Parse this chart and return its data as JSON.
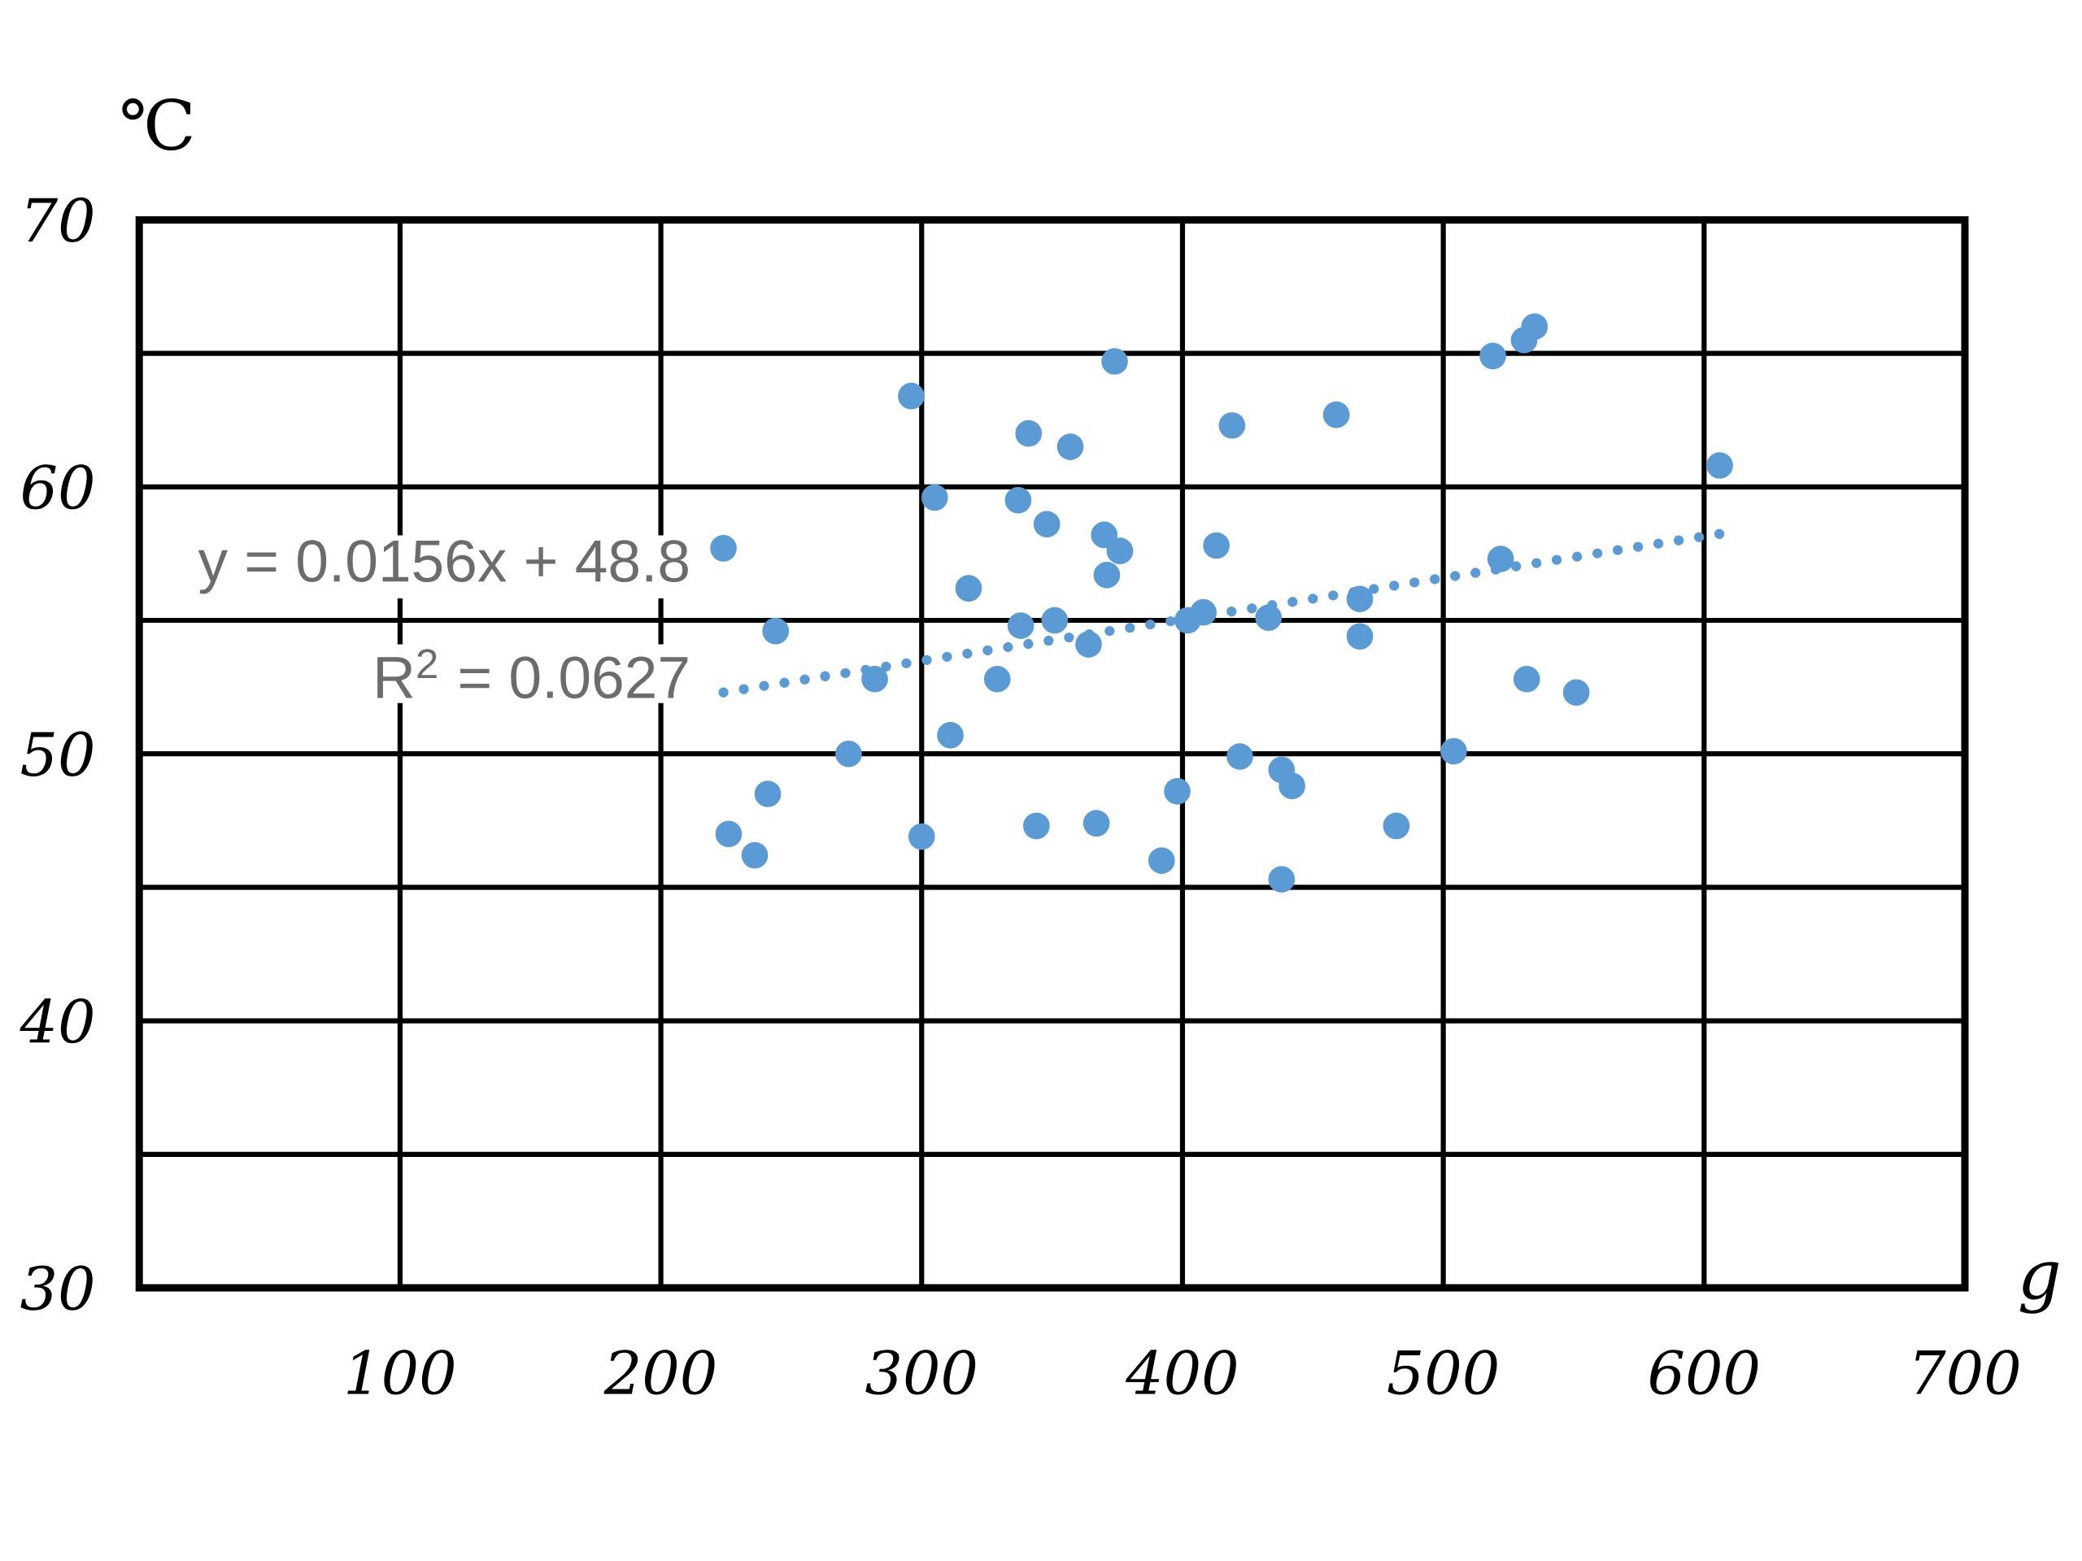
{
  "chart_data": {
    "type": "scatter",
    "xlabel": "g",
    "ylabel": "℃",
    "xlim": [
      0,
      700
    ],
    "ylim": [
      30,
      70
    ],
    "xticks": [
      100,
      200,
      300,
      400,
      500,
      600,
      700
    ],
    "yticks": [
      30,
      {
        "value": 35,
        "label": null
      },
      40,
      {
        "value": 45,
        "label": null
      },
      50,
      {
        "value": 55,
        "label": null
      },
      60,
      {
        "value": 65,
        "label": null
      },
      70
    ],
    "grid": true,
    "annotations": [
      "y = 0.0156x + 48.8",
      "R$^{2}$ = 0.0627"
    ],
    "series": [
      {
        "type": "scatter",
        "marker": "circle",
        "color": "#5b9bd5",
        "x": [
          224,
          244,
          226,
          236,
          241,
          272,
          282,
          296,
          300,
          305,
          311,
          318,
          329,
          337,
          338,
          341,
          344,
          348,
          351,
          357,
          364,
          367,
          370,
          371,
          374,
          376,
          392,
          398,
          402,
          408,
          413,
          419,
          422,
          433,
          438,
          438,
          442,
          459,
          468,
          468,
          482,
          504,
          519,
          522,
          531,
          532,
          535,
          551,
          606
        ],
        "values": [
          57.7,
          54.6,
          47.0,
          46.2,
          48.5,
          50.0,
          52.8,
          63.4,
          46.9,
          59.6,
          50.7,
          56.2,
          52.8,
          59.5,
          54.8,
          62.0,
          47.3,
          58.6,
          55.0,
          61.5,
          54.1,
          47.4,
          58.2,
          56.7,
          64.7,
          57.6,
          46.0,
          48.6,
          55.0,
          55.3,
          57.8,
          62.3,
          49.9,
          55.1,
          49.4,
          45.3,
          48.8,
          62.7,
          55.8,
          54.4,
          47.3,
          50.1,
          64.9,
          57.3,
          65.5,
          52.8,
          66.0,
          52.3,
          60.8
        ]
      },
      {
        "type": "line",
        "marker": "none",
        "line_style": "dotted",
        "color": "#5b9bd5",
        "x": [
          224,
          610
        ],
        "values": [
          52.3,
          58.3
        ]
      }
    ]
  }
}
